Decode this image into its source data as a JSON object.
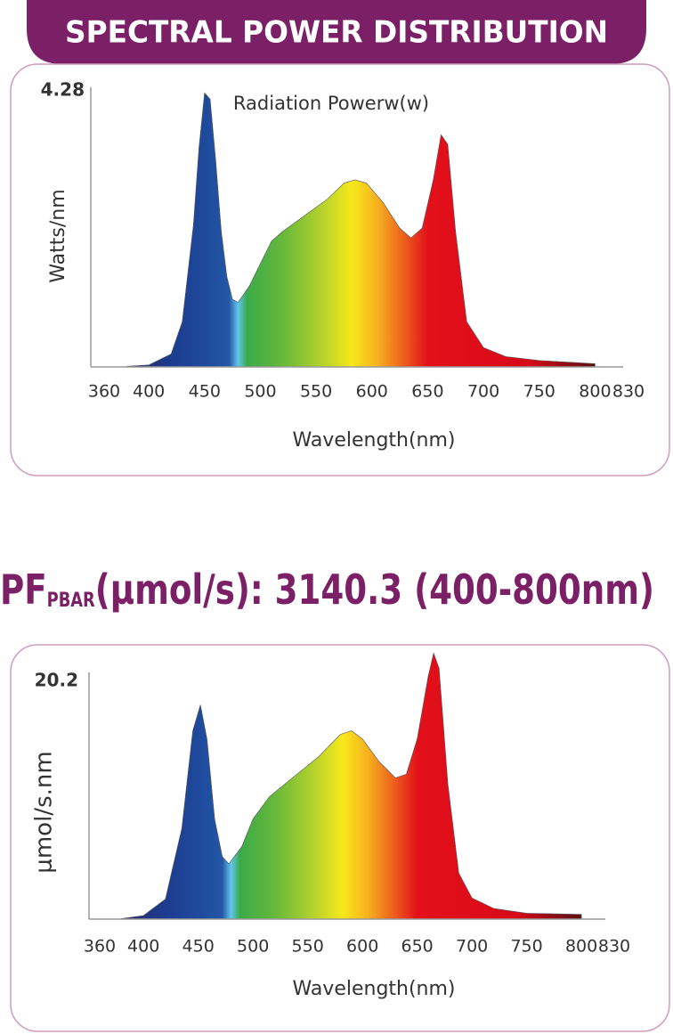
{
  "header": {
    "title": "SPECTRAL POWER DISTRIBUTION"
  },
  "pf_text": {
    "main": "PF",
    "subscript": "PBAR",
    "rest": "(μmol/s): 3140.3 (400-800nm)"
  },
  "chart_data": [
    {
      "type": "area",
      "title": "Radiation Powerw(w)",
      "ylabel": "Watts/nm",
      "xlabel": "Wavelength(nm)",
      "x": [
        380,
        400,
        420,
        430,
        440,
        445,
        450,
        455,
        460,
        465,
        470,
        475,
        480,
        490,
        500,
        510,
        520,
        540,
        560,
        575,
        585,
        595,
        610,
        625,
        635,
        645,
        655,
        662,
        668,
        675,
        685,
        700,
        720,
        750,
        780,
        800
      ],
      "values": [
        0.01,
        0.03,
        0.2,
        0.7,
        2.2,
        3.4,
        4.25,
        4.15,
        3.2,
        2.1,
        1.4,
        1.05,
        1.0,
        1.25,
        1.6,
        1.95,
        2.1,
        2.35,
        2.6,
        2.85,
        2.9,
        2.85,
        2.55,
        2.15,
        2.0,
        2.15,
        2.9,
        3.6,
        3.45,
        2.1,
        0.7,
        0.3,
        0.16,
        0.1,
        0.07,
        0.05
      ],
      "xlim": [
        360,
        830
      ],
      "ylim": [
        0,
        4.28
      ],
      "xticks": [
        360,
        400,
        450,
        500,
        550,
        600,
        650,
        700,
        750,
        800,
        830
      ],
      "yticks": [
        4.28
      ],
      "grid": false
    },
    {
      "type": "area",
      "ylabel": "μmol/s.nm",
      "xlabel": "Wavelength(nm)",
      "x": [
        380,
        400,
        420,
        435,
        445,
        452,
        458,
        465,
        472,
        478,
        490,
        500,
        515,
        540,
        560,
        580,
        590,
        600,
        615,
        630,
        640,
        650,
        660,
        665,
        670,
        678,
        688,
        700,
        720,
        750,
        800
      ],
      "values": [
        0.05,
        0.3,
        1.7,
        7.7,
        16,
        18.2,
        15.3,
        8.5,
        5.3,
        4.7,
        6.2,
        8.5,
        10.4,
        12.3,
        13.8,
        15.7,
        16,
        15.3,
        13.4,
        12,
        12.3,
        15.3,
        20.6,
        22.6,
        21.3,
        11.5,
        3.9,
        1.8,
        0.9,
        0.5,
        0.4
      ],
      "xlim": [
        360,
        830
      ],
      "ylim": [
        0,
        20.2
      ],
      "xticks": [
        360,
        400,
        450,
        500,
        550,
        600,
        650,
        700,
        750,
        800,
        830
      ],
      "yticks": [
        20.2
      ],
      "grid": false
    }
  ]
}
